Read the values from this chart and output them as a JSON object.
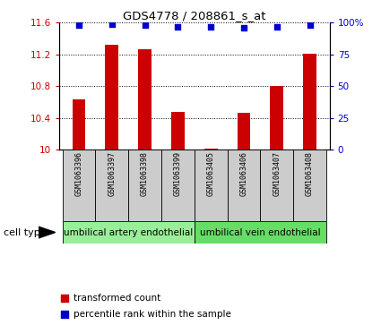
{
  "title": "GDS4778 / 208861_s_at",
  "samples": [
    "GSM1063396",
    "GSM1063397",
    "GSM1063398",
    "GSM1063399",
    "GSM1063405",
    "GSM1063406",
    "GSM1063407",
    "GSM1063408"
  ],
  "bar_values": [
    10.63,
    11.32,
    11.26,
    10.48,
    10.01,
    10.46,
    10.8,
    11.21
  ],
  "percentile_values": [
    98,
    99,
    98,
    97,
    97,
    96,
    97,
    98
  ],
  "bar_color": "#cc0000",
  "dot_color": "#0000cc",
  "ylim_left": [
    10,
    11.6
  ],
  "ylim_right": [
    0,
    100
  ],
  "yticks_left": [
    10,
    10.4,
    10.8,
    11.2,
    11.6
  ],
  "ytick_labels_left": [
    "10",
    "10.4",
    "10.8",
    "11.2",
    "11.6"
  ],
  "yticks_right": [
    0,
    25,
    50,
    75,
    100
  ],
  "ytick_labels_right": [
    "0",
    "25",
    "50",
    "75",
    "100%"
  ],
  "cell_type_groups": [
    {
      "label": "umbilical artery endothelial",
      "start": 0,
      "end": 3,
      "color": "#99ee99"
    },
    {
      "label": "umbilical vein endothelial",
      "start": 4,
      "end": 7,
      "color": "#66dd66"
    }
  ],
  "cell_type_label": "cell type",
  "legend_bar_label": "transformed count",
  "legend_dot_label": "percentile rank within the sample",
  "tick_label_color_left": "#cc0000",
  "tick_label_color_right": "#0000cc",
  "sample_bg_color": "#cccccc",
  "bar_width": 0.4
}
